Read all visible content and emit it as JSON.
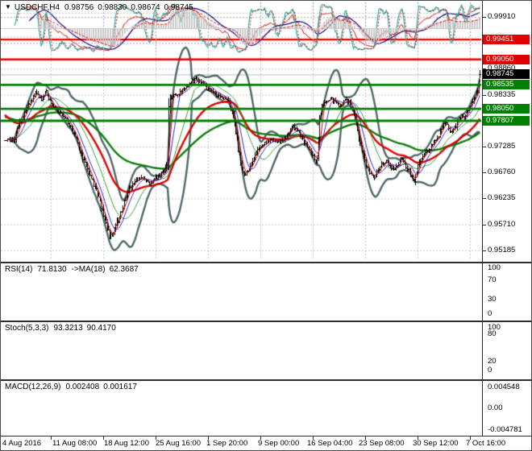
{
  "title": {
    "dropdown_icon": "▼",
    "symbol_period": "USDCHF,H4",
    "open": "0.98756",
    "high": "0.98830",
    "low": "0.98674",
    "close": "0.98745"
  },
  "price_axis": {
    "tick_labels": [
      "0.99910",
      "0.99385",
      "0.98860",
      "0.98335",
      "0.97810",
      "0.97285",
      "0.96760",
      "0.96235",
      "0.95710",
      "0.95185"
    ]
  },
  "levels": {
    "resistance": [
      {
        "label": "0.99451",
        "price": 0.99451
      },
      {
        "label": "0.99050",
        "price": 0.9905
      }
    ],
    "support": [
      {
        "label": "0.98535",
        "price": 0.98535
      },
      {
        "label": "0.98050",
        "price": 0.9805
      },
      {
        "label": "0.97807",
        "price": 0.97807
      }
    ],
    "current": {
      "label": "0.98745",
      "price": 0.98745
    }
  },
  "x_axis": {
    "labels": [
      "4 Aug 2016",
      "11 Aug 08:00",
      "18 Aug 12:00",
      "25 Aug 16:00",
      "1 Sep 20:00",
      "9 Sep 00:00",
      "16 Sep 04:00",
      "23 Sep 08:00",
      "30 Sep 12:00",
      "7 Oct 16:00"
    ]
  },
  "indicators": {
    "rsi": {
      "name": "RSI(14)",
      "value": "71.8130",
      "ma_name": "->MA(18)",
      "ma_value": "62.3687",
      "scale": [
        100,
        70,
        30,
        0
      ],
      "levels": [
        70,
        30
      ]
    },
    "stoch": {
      "name": "Stoch(5,3,3)",
      "value": "93.3213",
      "signal_value": "90.4170",
      "scale": [
        100,
        80,
        20,
        0
      ],
      "levels": [
        80,
        20
      ]
    },
    "macd": {
      "name": "MACD(12,26,9)",
      "value": "0.002408",
      "signal_value": "0.001617",
      "scale": [
        "0.004548",
        "0.00",
        "-0.004781"
      ],
      "max": 0.004548,
      "min": -0.004781
    }
  },
  "colors": {
    "grid": "#c6c6c6",
    "candle": "#000000",
    "band": "#4e6968",
    "ma_thin_red": "#d40000",
    "ma_thin_blue": "#2424c8",
    "ma_thin_green": "#2fa12f",
    "ma_thick_red": "#e00000",
    "ma_thick_green": "#0d7c0d",
    "resistance_line": "#ee0000",
    "support_line": "#008000",
    "bid_line": "#b9b9b9",
    "resistance_badge_bg": "#e00000",
    "support_badge_bg": "#008000",
    "current_badge_bg": "#000000",
    "rsi_line": "#dd0000",
    "rsi_ma_line": "#000080",
    "stoch_k_line": "#1fb2aa",
    "stoch_d_line": "#dd0000",
    "macd_hist": "#c9c9c9",
    "macd_signal": "#dd0000",
    "axis_text": "#000000"
  },
  "chart_data": {
    "type": "candlestick",
    "symbol": "USDCHF",
    "timeframe": "H4",
    "current_bar": {
      "open": 0.98756,
      "high": 0.9883,
      "low": 0.98674,
      "close": 0.98745
    },
    "y_axis": {
      "min": 0.95185,
      "max": 0.9991,
      "tick_step": 0.00525,
      "ticks": [
        0.9991,
        0.99385,
        0.9886,
        0.98335,
        0.9781,
        0.97285,
        0.9676,
        0.96235,
        0.9571,
        0.95185
      ]
    },
    "x_ticks": [
      "4 Aug 2016",
      "11 Aug 08:00",
      "18 Aug 12:00",
      "25 Aug 16:00",
      "1 Sep 20:00",
      "9 Sep 00:00",
      "16 Sep 04:00",
      "23 Sep 08:00",
      "30 Sep 12:00",
      "7 Oct 16:00"
    ],
    "bars_count": 392,
    "horizontal_lines": [
      {
        "price": 0.99451,
        "color": "red",
        "role": "resistance"
      },
      {
        "price": 0.9905,
        "color": "red",
        "role": "resistance"
      },
      {
        "price": 0.98535,
        "color": "green",
        "role": "support"
      },
      {
        "price": 0.9805,
        "color": "green",
        "role": "support"
      },
      {
        "price": 0.97807,
        "color": "green",
        "role": "support"
      },
      {
        "price": 0.98745,
        "color": "gray",
        "role": "current-bid"
      }
    ],
    "overlays": [
      {
        "name": "Bollinger Bands",
        "period": 20,
        "deviation": 2,
        "color": "dark-slate"
      },
      {
        "name": "MA",
        "style": "thin-red-fast"
      },
      {
        "name": "MA",
        "style": "thin-blue"
      },
      {
        "name": "MA",
        "style": "thin-green"
      },
      {
        "name": "MA",
        "style": "thick-red-slow"
      },
      {
        "name": "MA",
        "style": "thick-green-slowest"
      }
    ],
    "price_path_anchors": [
      [
        0,
        0.9745
      ],
      [
        7,
        0.974
      ],
      [
        13,
        0.9782
      ],
      [
        20,
        0.9818
      ],
      [
        25,
        0.9838
      ],
      [
        30,
        0.9824
      ],
      [
        34,
        0.9839
      ],
      [
        38,
        0.9818
      ],
      [
        44,
        0.98
      ],
      [
        50,
        0.9786
      ],
      [
        55,
        0.9766
      ],
      [
        60,
        0.9738
      ],
      [
        64,
        0.9706
      ],
      [
        70,
        0.9668
      ],
      [
        75,
        0.9642
      ],
      [
        80,
        0.96
      ],
      [
        86,
        0.9547
      ],
      [
        90,
        0.9562
      ],
      [
        95,
        0.9595
      ],
      [
        101,
        0.9636
      ],
      [
        107,
        0.966
      ],
      [
        113,
        0.9665
      ],
      [
        119,
        0.9654
      ],
      [
        125,
        0.9666
      ],
      [
        130,
        0.9676
      ],
      [
        133,
        0.969
      ],
      [
        134,
        0.97
      ],
      [
        135,
        0.9815
      ],
      [
        137,
        0.9828
      ],
      [
        143,
        0.9836
      ],
      [
        148,
        0.9846
      ],
      [
        153,
        0.9858
      ],
      [
        157,
        0.9866
      ],
      [
        162,
        0.9856
      ],
      [
        168,
        0.9844
      ],
      [
        173,
        0.9833
      ],
      [
        178,
        0.983
      ],
      [
        184,
        0.9822
      ],
      [
        188,
        0.9792
      ],
      [
        191,
        0.9738
      ],
      [
        194,
        0.9694
      ],
      [
        198,
        0.967
      ],
      [
        202,
        0.9688
      ],
      [
        206,
        0.9712
      ],
      [
        210,
        0.9729
      ],
      [
        214,
        0.9736
      ],
      [
        219,
        0.9744
      ],
      [
        223,
        0.9737
      ],
      [
        228,
        0.9742
      ],
      [
        233,
        0.9755
      ],
      [
        237,
        0.9769
      ],
      [
        241,
        0.9759
      ],
      [
        245,
        0.9743
      ],
      [
        249,
        0.9726
      ],
      [
        253,
        0.9712
      ],
      [
        256,
        0.97
      ],
      [
        257,
        0.9712
      ],
      [
        259,
        0.9782
      ],
      [
        261,
        0.9812
      ],
      [
        264,
        0.9816
      ],
      [
        268,
        0.9827
      ],
      [
        272,
        0.9818
      ],
      [
        276,
        0.9812
      ],
      [
        280,
        0.9824
      ],
      [
        284,
        0.9817
      ],
      [
        287,
        0.9796
      ],
      [
        290,
        0.976
      ],
      [
        294,
        0.9722
      ],
      [
        297,
        0.9692
      ],
      [
        300,
        0.9673
      ],
      [
        304,
        0.9667
      ],
      [
        307,
        0.9681
      ],
      [
        310,
        0.9694
      ],
      [
        314,
        0.97
      ],
      [
        317,
        0.969
      ],
      [
        320,
        0.9682
      ],
      [
        324,
        0.9696
      ],
      [
        327,
        0.9705
      ],
      [
        330,
        0.9689
      ],
      [
        334,
        0.9672
      ],
      [
        337,
        0.966
      ],
      [
        340,
        0.969
      ],
      [
        344,
        0.9707
      ],
      [
        347,
        0.9719
      ],
      [
        350,
        0.9726
      ],
      [
        353,
        0.9737
      ],
      [
        357,
        0.9752
      ],
      [
        360,
        0.9768
      ],
      [
        363,
        0.9778
      ],
      [
        365,
        0.9766
      ],
      [
        368,
        0.9757
      ],
      [
        371,
        0.9771
      ],
      [
        373,
        0.9784
      ],
      [
        376,
        0.9792
      ],
      [
        379,
        0.9787
      ],
      [
        381,
        0.9805
      ],
      [
        384,
        0.9819
      ],
      [
        387,
        0.9833
      ],
      [
        389,
        0.9847
      ],
      [
        391,
        0.98745
      ]
    ],
    "indicator_panels": [
      {
        "name": "RSI",
        "params": [
          14
        ],
        "value": 71.813,
        "ma_period": 18,
        "ma_value": 62.3687,
        "range": [
          0,
          100
        ],
        "levels": [
          30,
          70
        ]
      },
      {
        "name": "Stochastic",
        "params": [
          5,
          3,
          3
        ],
        "value": 93.3213,
        "signal": 90.417,
        "range": [
          0,
          100
        ],
        "levels": [
          20,
          80
        ]
      },
      {
        "name": "MACD",
        "params": [
          12,
          26,
          9
        ],
        "value": 0.002408,
        "signal": 0.001617,
        "scale_max": 0.004548,
        "scale_min": -0.004781
      }
    ]
  }
}
